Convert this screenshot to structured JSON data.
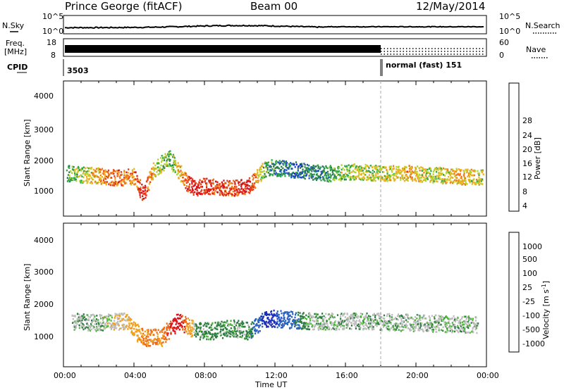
{
  "header": {
    "station": "Prince George (fitACF)",
    "beam": "Beam 00",
    "date": "12/May/2014"
  },
  "noise_panel": {
    "left_label": "N.Sky",
    "right_label": "N.Search",
    "left_ticks": [
      "10^5",
      "10^0"
    ],
    "right_ticks": [
      "10^5",
      "10^0"
    ]
  },
  "freq_panel": {
    "left_label_1": "Freq.",
    "left_label_2": "[MHz]",
    "right_label": "Nave",
    "left_ticks": [
      "18",
      "8"
    ],
    "right_ticks": [
      "60",
      "0"
    ]
  },
  "cpid_panel": {
    "label": "CPID",
    "cpid_1": "3503",
    "cpid_2": "normal (fast) 151"
  },
  "power_panel": {
    "ylabel": "Slant Range [km]",
    "yticks": [
      "4000",
      "3000",
      "2000",
      "1000"
    ],
    "colorbar_label": "Power [dB]",
    "colorbar_ticks": [
      "28",
      "24",
      "20",
      "16",
      "12",
      "8",
      "4"
    ],
    "colors": [
      "#0b1ee0",
      "#1a4fc8",
      "#2c7a4a",
      "#2ea84a",
      "#b5d22a",
      "#f0b020",
      "#ef7a1a",
      "#e8401a",
      "#d8141a"
    ]
  },
  "velocity_panel": {
    "ylabel": "Slant Range [km]",
    "yticks": [
      "4000",
      "3000",
      "2000",
      "1000"
    ],
    "colorbar_label": "Velocity [m s",
    "colorbar_label_sup": "-1",
    "colorbar_label_end": "]",
    "colorbar_ticks": [
      "1000",
      "500",
      "100",
      "25",
      "-25",
      "-100",
      "-500",
      "-1000"
    ],
    "colors": [
      "#1b2fb8",
      "#2a62c0",
      "#2e7d42",
      "#52b83c",
      "#bdbdbd",
      "#bdbdbd",
      "#f0a020",
      "#ef6b18",
      "#d8141a"
    ]
  },
  "x_axis": {
    "label": "Time UT",
    "ticks": [
      "00:00",
      "04:00",
      "08:00",
      "12:00",
      "16:00",
      "20:00",
      "00:00"
    ]
  },
  "chart_data": {
    "type": "heatmap",
    "description_of_axes": "range-time intensity plot",
    "x_range_hours": [
      0,
      24
    ],
    "y_range_km": [
      180,
      4600
    ],
    "mode_change_hour": 18,
    "power_series": [
      {
        "t": 0.2,
        "r": 1600,
        "p": 12
      },
      {
        "t": 1.0,
        "r": 1560,
        "p": 16
      },
      {
        "t": 2.0,
        "r": 1520,
        "p": 20
      },
      {
        "t": 3.0,
        "r": 1450,
        "p": 24
      },
      {
        "t": 4.0,
        "r": 1500,
        "p": 22
      },
      {
        "t": 4.5,
        "r": 900,
        "p": 28
      },
      {
        "t": 5.0,
        "r": 1650,
        "p": 20
      },
      {
        "t": 5.5,
        "r": 1900,
        "p": 16
      },
      {
        "t": 6.0,
        "r": 2100,
        "p": 12
      },
      {
        "t": 7.0,
        "r": 1300,
        "p": 24
      },
      {
        "t": 7.5,
        "r": 1100,
        "p": 28
      },
      {
        "t": 8.0,
        "r": 1200,
        "p": 26
      },
      {
        "t": 9.5,
        "r": 1100,
        "p": 24
      },
      {
        "t": 10.5,
        "r": 1200,
        "p": 28
      },
      {
        "t": 11.5,
        "r": 1800,
        "p": 12
      },
      {
        "t": 13.5,
        "r": 1700,
        "p": 8
      },
      {
        "t": 15.0,
        "r": 1600,
        "p": 12
      },
      {
        "t": 16.5,
        "r": 1650,
        "p": 16
      },
      {
        "t": 18.0,
        "r": 1600,
        "p": 16
      },
      {
        "t": 19.5,
        "r": 1600,
        "p": 20
      },
      {
        "t": 21.0,
        "r": 1550,
        "p": 16
      },
      {
        "t": 22.5,
        "r": 1500,
        "p": 20
      },
      {
        "t": 23.8,
        "r": 1450,
        "p": 16
      }
    ],
    "velocity_series": [
      {
        "t": 0.5,
        "r": 1600,
        "v": 0
      },
      {
        "t": 2.0,
        "r": 1550,
        "v": 0
      },
      {
        "t": 3.5,
        "r": 1600,
        "v": -100
      },
      {
        "t": 4.5,
        "r": 1100,
        "v": -500
      },
      {
        "t": 5.5,
        "r": 1100,
        "v": -500
      },
      {
        "t": 6.5,
        "r": 1600,
        "v": -1000
      },
      {
        "t": 7.5,
        "r": 1300,
        "v": 100
      },
      {
        "t": 8.5,
        "r": 1300,
        "v": 100
      },
      {
        "t": 9.5,
        "r": 1400,
        "v": 100
      },
      {
        "t": 10.5,
        "r": 1300,
        "v": 100
      },
      {
        "t": 11.5,
        "r": 1700,
        "v": 1000
      },
      {
        "t": 14.0,
        "r": 1600,
        "v": 0
      },
      {
        "t": 17.0,
        "r": 1600,
        "v": 0
      },
      {
        "t": 20.0,
        "r": 1550,
        "v": 0
      },
      {
        "t": 23.5,
        "r": 1500,
        "v": 0
      }
    ]
  }
}
